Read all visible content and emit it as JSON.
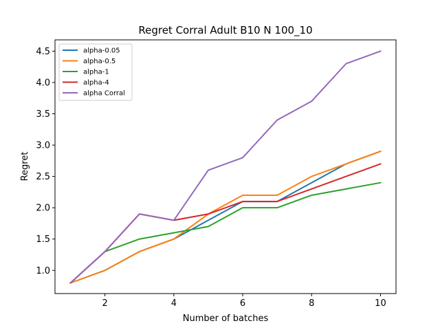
{
  "chart_data": {
    "type": "line",
    "title": "Regret Corral Adult B10 N 100_10",
    "xlabel": "Number of batches",
    "ylabel": "Regret",
    "x": [
      1,
      2,
      3,
      4,
      5,
      6,
      7,
      8,
      9,
      10
    ],
    "xlim": [
      0.55,
      10.45
    ],
    "ylim": [
      0.63,
      4.68
    ],
    "xticks": [
      2,
      4,
      6,
      8,
      10
    ],
    "yticks": [
      1.0,
      1.5,
      2.0,
      2.5,
      3.0,
      3.5,
      4.0,
      4.5
    ],
    "xtick_labels": [
      "2",
      "4",
      "6",
      "8",
      "10"
    ],
    "ytick_labels": [
      "1.0",
      "1.5",
      "2.0",
      "2.5",
      "3.0",
      "3.5",
      "4.0",
      "4.5"
    ],
    "grid": false,
    "legend_position": "top-left",
    "series": [
      {
        "name": "alpha-0.05",
        "color": "#1f77b4",
        "values": [
          0.8,
          1.0,
          1.3,
          1.5,
          1.8,
          2.1,
          2.1,
          2.4,
          2.7,
          2.9
        ]
      },
      {
        "name": "alpha-0.5",
        "color": "#ff7f0e",
        "values": [
          0.8,
          1.0,
          1.3,
          1.5,
          1.9,
          2.2,
          2.2,
          2.5,
          2.7,
          2.9
        ]
      },
      {
        "name": "alpha-1",
        "color": "#2ca02c",
        "values": [
          0.8,
          1.3,
          1.5,
          1.6,
          1.7,
          2.0,
          2.0,
          2.2,
          2.3,
          2.4
        ]
      },
      {
        "name": "alpha-4",
        "color": "#d62728",
        "values": [
          0.8,
          1.3,
          1.9,
          1.8,
          1.9,
          2.1,
          2.1,
          2.3,
          2.5,
          2.7
        ]
      },
      {
        "name": "alpha Corral",
        "color": "#9467bd",
        "values": [
          0.8,
          1.3,
          1.9,
          1.8,
          2.6,
          2.8,
          3.4,
          3.7,
          4.3,
          4.5
        ]
      }
    ]
  }
}
